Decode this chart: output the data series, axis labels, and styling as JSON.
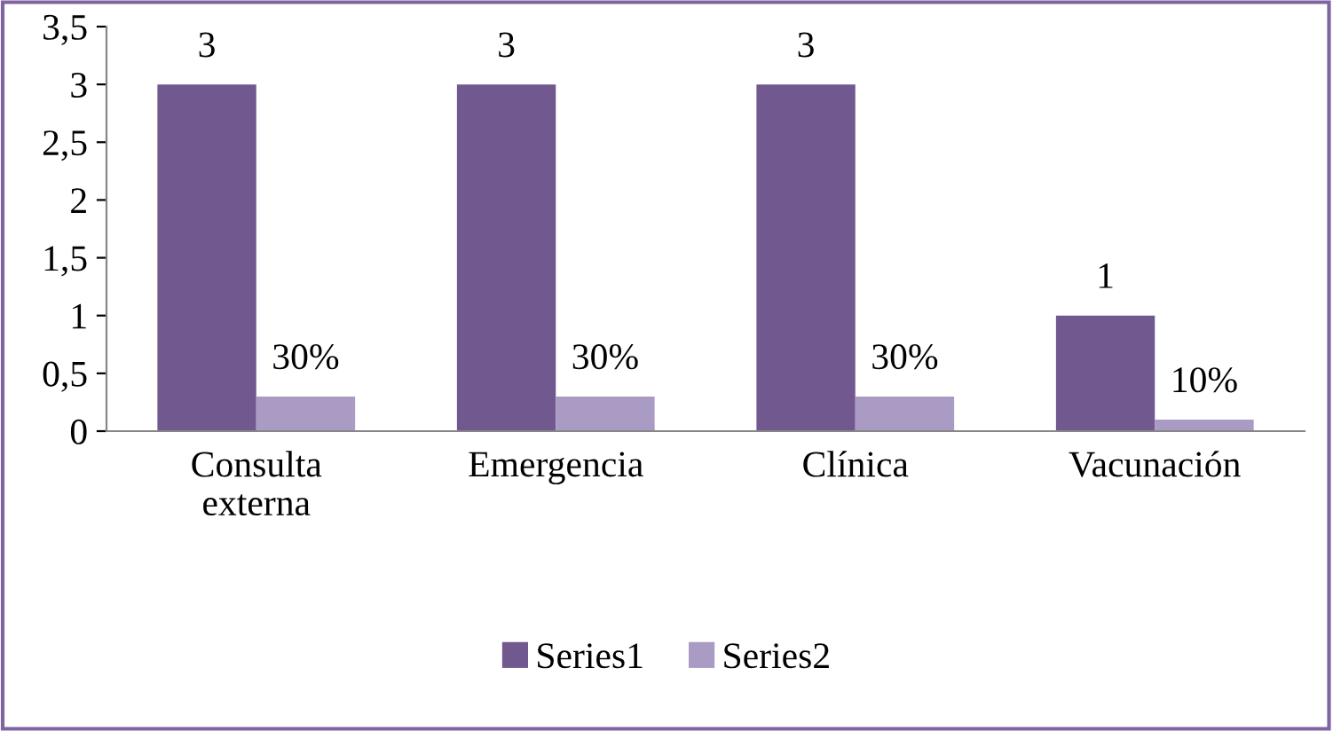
{
  "chart_data": {
    "type": "bar",
    "categories": [
      "Consulta\nexterna",
      "Emergencia",
      "Clínica",
      "Vacunación"
    ],
    "series": [
      {
        "name": "Series1",
        "color": "#71588f",
        "values": [
          3,
          3,
          3,
          1
        ],
        "value_labels": [
          "3",
          "3",
          "3",
          "1"
        ]
      },
      {
        "name": "Series2",
        "color": "#a99bc4",
        "values": [
          0.3,
          0.3,
          0.3,
          0.1
        ],
        "value_labels": [
          "30%",
          "30%",
          "30%",
          "10%"
        ]
      }
    ],
    "ylim": [
      0,
      3.5
    ],
    "yticks": [
      0,
      {
        "value": 0.5,
        "label": "0,5"
      },
      1,
      {
        "value": 1.5,
        "label": "1,5"
      },
      2,
      {
        "value": 2.5,
        "label": "2,5"
      },
      3,
      {
        "value": 3.5,
        "label": "3,5"
      }
    ],
    "grid": false,
    "legend": "bottom"
  }
}
